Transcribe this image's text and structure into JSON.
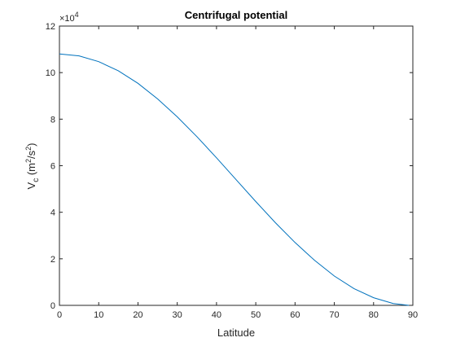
{
  "chart_data": {
    "type": "line",
    "title": "Centrifugal potential",
    "xlabel": "Latitude",
    "ylabel": {
      "main": "V",
      "sub": "c",
      "paren_open": " (m",
      "sup1": "2",
      "mid": "/s",
      "sup2": "2",
      "paren_close": ")"
    },
    "y_exponent": {
      "base": "×10",
      "power": "4"
    },
    "xlim": [
      0,
      90
    ],
    "ylim": [
      0,
      12
    ],
    "x_ticks": [
      0,
      10,
      20,
      30,
      40,
      50,
      60,
      70,
      80,
      90
    ],
    "y_ticks": [
      0,
      2,
      4,
      6,
      8,
      10,
      12
    ],
    "grid": false,
    "series": [
      {
        "color": "#0072bd",
        "x": [
          0,
          5,
          10,
          15,
          20,
          25,
          30,
          35,
          40,
          45,
          50,
          55,
          60,
          65,
          70,
          75,
          80,
          85,
          89
        ],
        "y": [
          10.8,
          10.72,
          10.47,
          10.08,
          9.54,
          8.87,
          8.1,
          7.25,
          6.34,
          5.4,
          4.46,
          3.55,
          2.7,
          1.93,
          1.26,
          0.72,
          0.33,
          0.08,
          0.0
        ]
      }
    ]
  }
}
